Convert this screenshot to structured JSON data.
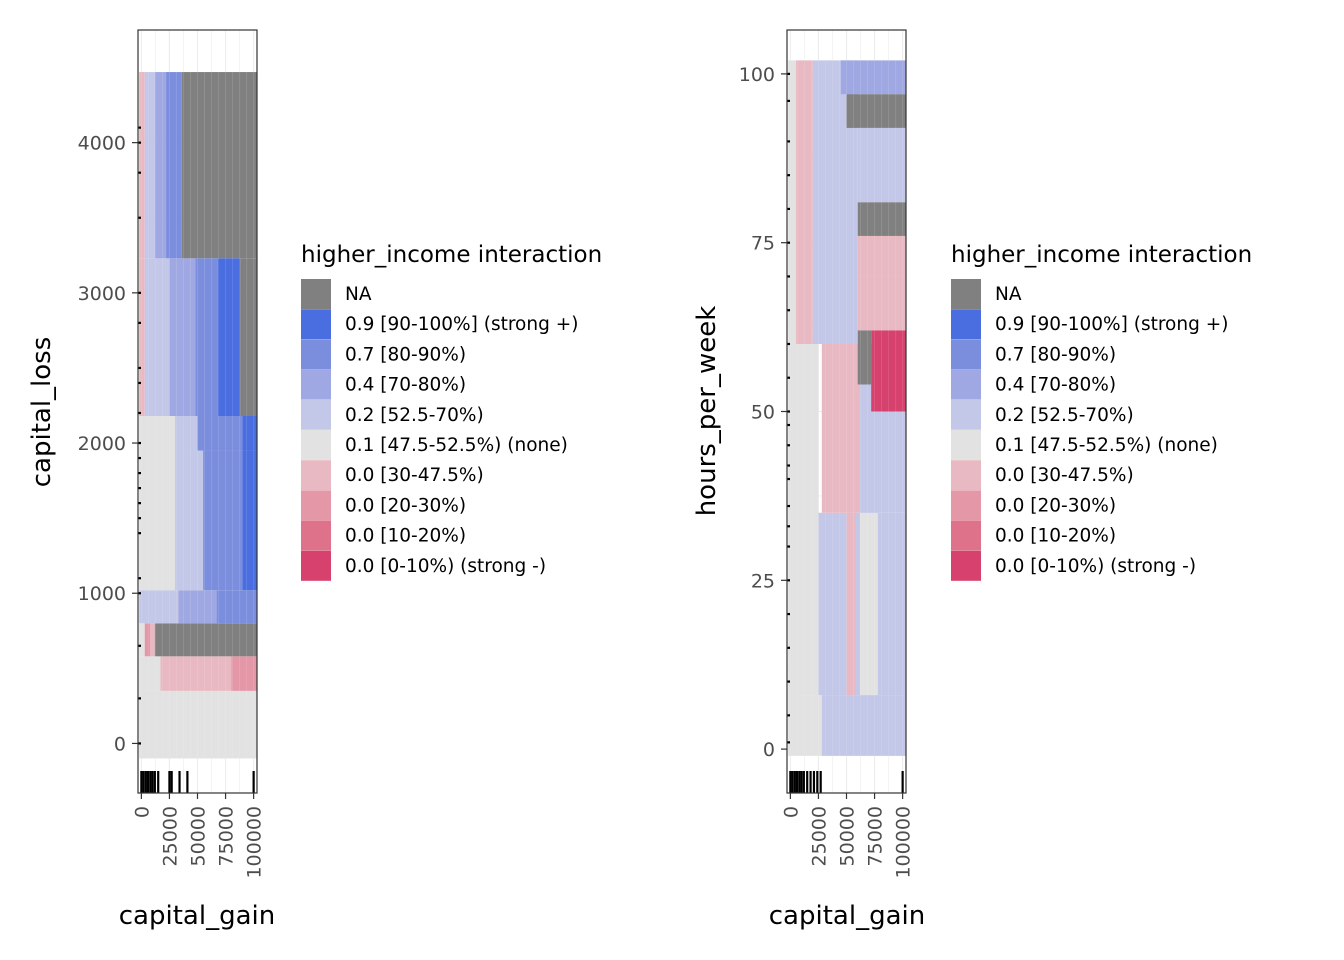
{
  "colors": {
    "NA": "#808080",
    "b09": "#4a6de0",
    "b07": "#7b8ede",
    "b04": "#9fa8e2",
    "b02": "#c3c7e8",
    "none": "#e2e2e2",
    "r30": "#e8b9c2",
    "r20": "#e397a7",
    "r10": "#de728b",
    "r00": "#d6416d",
    "panel_border": "#333333",
    "grid": "#ebebeb",
    "rug": "#000000"
  },
  "legend": {
    "title": "higher_income interaction",
    "items": [
      {
        "key": "NA",
        "label": "NA"
      },
      {
        "key": "b09",
        "label": "0.9 [90-100%] (strong +)"
      },
      {
        "key": "b07",
        "label": "0.7 [80-90%)"
      },
      {
        "key": "b04",
        "label": "0.4 [70-80%)"
      },
      {
        "key": "b02",
        "label": "0.2 [52.5-70%)"
      },
      {
        "key": "none",
        "label": "0.1 [47.5-52.5%) (none)"
      },
      {
        "key": "r30",
        "label": "0.0 [30-47.5%)"
      },
      {
        "key": "r20",
        "label": "0.0 [20-30%)"
      },
      {
        "key": "r10",
        "label": "0.0 [10-20%)"
      },
      {
        "key": "r00",
        "label": "0.0 [0-10%) (strong -)"
      }
    ]
  },
  "chart_data": [
    {
      "type": "heatmap",
      "xlabel": "capital_gain",
      "ylabel": "capital_loss",
      "xlim": [
        -3000,
        103000
      ],
      "ylim": [
        -330,
        4750
      ],
      "x_ticks": [
        0,
        25000,
        50000,
        75000,
        100000
      ],
      "x_tick_labels": [
        "0",
        "25000",
        "50000",
        "75000",
        "100000"
      ],
      "y_ticks": [
        0,
        1000,
        2000,
        3000,
        4000
      ],
      "y_tick_labels": [
        "0",
        "1000",
        "2000",
        "3000",
        "4000"
      ],
      "cells": [
        {
          "x": [
            -2000,
            105000
          ],
          "y": [
            -100,
            350
          ],
          "cat": "none"
        },
        {
          "x": [
            -2000,
            17000
          ],
          "y": [
            350,
            580
          ],
          "cat": "none"
        },
        {
          "x": [
            17000,
            80000
          ],
          "y": [
            350,
            580
          ],
          "cat": "r30"
        },
        {
          "x": [
            80000,
            105000
          ],
          "y": [
            350,
            580
          ],
          "cat": "r20"
        },
        {
          "x": [
            -2000,
            3000
          ],
          "y": [
            580,
            800
          ],
          "cat": "none"
        },
        {
          "x": [
            3000,
            8000
          ],
          "y": [
            580,
            800
          ],
          "cat": "r20"
        },
        {
          "x": [
            8000,
            12000
          ],
          "y": [
            580,
            800
          ],
          "cat": "r30"
        },
        {
          "x": [
            12000,
            105000
          ],
          "y": [
            580,
            800
          ],
          "cat": "NA"
        },
        {
          "x": [
            -2000,
            33000
          ],
          "y": [
            800,
            1020
          ],
          "cat": "b02"
        },
        {
          "x": [
            33000,
            67000
          ],
          "y": [
            800,
            1020
          ],
          "cat": "b04"
        },
        {
          "x": [
            67000,
            105000
          ],
          "y": [
            800,
            1020
          ],
          "cat": "b07"
        },
        {
          "x": [
            -2000,
            30000
          ],
          "y": [
            1020,
            1950
          ],
          "cat": "none"
        },
        {
          "x": [
            30000,
            55000
          ],
          "y": [
            1020,
            1950
          ],
          "cat": "b02"
        },
        {
          "x": [
            55000,
            90000
          ],
          "y": [
            1020,
            1950
          ],
          "cat": "b07"
        },
        {
          "x": [
            90000,
            105000
          ],
          "y": [
            1020,
            1950
          ],
          "cat": "b09"
        },
        {
          "x": [
            -2000,
            30000
          ],
          "y": [
            1950,
            2180
          ],
          "cat": "none"
        },
        {
          "x": [
            30000,
            50000
          ],
          "y": [
            1950,
            2180
          ],
          "cat": "b02"
        },
        {
          "x": [
            50000,
            90000
          ],
          "y": [
            1950,
            2180
          ],
          "cat": "b07"
        },
        {
          "x": [
            90000,
            105000
          ],
          "y": [
            1950,
            2180
          ],
          "cat": "b09"
        },
        {
          "x": [
            -2000,
            3000
          ],
          "y": [
            2180,
            3230
          ],
          "cat": "r30"
        },
        {
          "x": [
            3000,
            25000
          ],
          "y": [
            2180,
            3230
          ],
          "cat": "b02"
        },
        {
          "x": [
            25000,
            48000
          ],
          "y": [
            2180,
            3230
          ],
          "cat": "b04"
        },
        {
          "x": [
            48000,
            68000
          ],
          "y": [
            2180,
            3230
          ],
          "cat": "b07"
        },
        {
          "x": [
            68000,
            88000
          ],
          "y": [
            2180,
            3230
          ],
          "cat": "b09"
        },
        {
          "x": [
            88000,
            105000
          ],
          "y": [
            2180,
            3230
          ],
          "cat": "NA"
        },
        {
          "x": [
            -2000,
            3000
          ],
          "y": [
            3230,
            4470
          ],
          "cat": "r30"
        },
        {
          "x": [
            3000,
            12000
          ],
          "y": [
            3230,
            4470
          ],
          "cat": "b02"
        },
        {
          "x": [
            12000,
            22000
          ],
          "y": [
            3230,
            4470
          ],
          "cat": "b04"
        },
        {
          "x": [
            22000,
            36000
          ],
          "y": [
            3230,
            4470
          ],
          "cat": "b07"
        },
        {
          "x": [
            36000,
            105000
          ],
          "y": [
            3230,
            4470
          ],
          "cat": "NA"
        }
      ],
      "x_rug": [
        0,
        2000,
        4000,
        6000,
        8000,
        10000,
        12000,
        15000,
        25000,
        27000,
        34000,
        41000,
        99999
      ],
      "y_rug": [
        0,
        300,
        650,
        1000,
        1100,
        1400,
        1500,
        1600,
        1700,
        1800,
        1900,
        2000,
        2200,
        2400,
        2500,
        2800,
        3000,
        3500,
        3800,
        4000,
        4100
      ]
    },
    {
      "type": "heatmap",
      "xlabel": "capital_gain",
      "ylabel": "hours_per_week",
      "xlim": [
        -3000,
        103000
      ],
      "ylim": [
        -6.5,
        106.5
      ],
      "x_ticks": [
        0,
        25000,
        50000,
        75000,
        100000
      ],
      "x_tick_labels": [
        "0",
        "25000",
        "50000",
        "75000",
        "100000"
      ],
      "y_ticks": [
        0,
        25,
        50,
        75,
        100
      ],
      "y_tick_labels": [
        "0",
        "25",
        "50",
        "75",
        "100"
      ],
      "cells": [
        {
          "x": [
            -2000,
            5000
          ],
          "y": [
            -1,
            102
          ],
          "cat": "none"
        },
        {
          "x": [
            5000,
            28000
          ],
          "y": [
            -1,
            8
          ],
          "cat": "none"
        },
        {
          "x": [
            28000,
            105000
          ],
          "y": [
            -1,
            8
          ],
          "cat": "b02"
        },
        {
          "x": [
            5000,
            25000
          ],
          "y": [
            8,
            60
          ],
          "cat": "none"
        },
        {
          "x": [
            25000,
            105000
          ],
          "y": [
            8,
            35
          ],
          "cat": "b02"
        },
        {
          "x": [
            50000,
            58000
          ],
          "y": [
            8,
            35
          ],
          "cat": "r30"
        },
        {
          "x": [
            62000,
            78000
          ],
          "y": [
            8,
            35
          ],
          "cat": "none"
        },
        {
          "x": [
            28000,
            38000
          ],
          "y": [
            35,
            60
          ],
          "cat": "r30"
        },
        {
          "x": [
            38000,
            62000
          ],
          "y": [
            35,
            60
          ],
          "cat": "r30"
        },
        {
          "x": [
            62000,
            105000
          ],
          "y": [
            35,
            60
          ],
          "cat": "b02"
        },
        {
          "x": [
            5000,
            20000
          ],
          "y": [
            60,
            102
          ],
          "cat": "r30"
        },
        {
          "x": [
            20000,
            60000
          ],
          "y": [
            60,
            102
          ],
          "cat": "b02"
        },
        {
          "x": [
            60000,
            105000
          ],
          "y": [
            70,
            76
          ],
          "cat": "r30"
        },
        {
          "x": [
            60000,
            105000
          ],
          "y": [
            62,
            70
          ],
          "cat": "r30"
        },
        {
          "x": [
            60000,
            72000
          ],
          "y": [
            54,
            62
          ],
          "cat": "NA"
        },
        {
          "x": [
            72000,
            105000
          ],
          "y": [
            50,
            62
          ],
          "cat": "r00"
        },
        {
          "x": [
            60000,
            105000
          ],
          "y": [
            76,
            81
          ],
          "cat": "NA"
        },
        {
          "x": [
            60000,
            105000
          ],
          "y": [
            81,
            92
          ],
          "cat": "b02"
        },
        {
          "x": [
            50000,
            105000
          ],
          "y": [
            92,
            97
          ],
          "cat": "NA"
        },
        {
          "x": [
            45000,
            105000
          ],
          "y": [
            97,
            102
          ],
          "cat": "b04"
        }
      ],
      "x_rug": [
        0,
        2000,
        4000,
        6000,
        8000,
        10000,
        12000,
        15000,
        18000,
        21000,
        24000,
        27000,
        99999
      ],
      "y_rug": [
        1,
        5,
        10,
        15,
        20,
        25,
        30,
        33,
        36,
        40,
        42,
        45,
        48,
        50,
        55,
        60,
        65,
        70,
        75,
        80,
        85,
        90,
        96,
        100
      ]
    }
  ]
}
